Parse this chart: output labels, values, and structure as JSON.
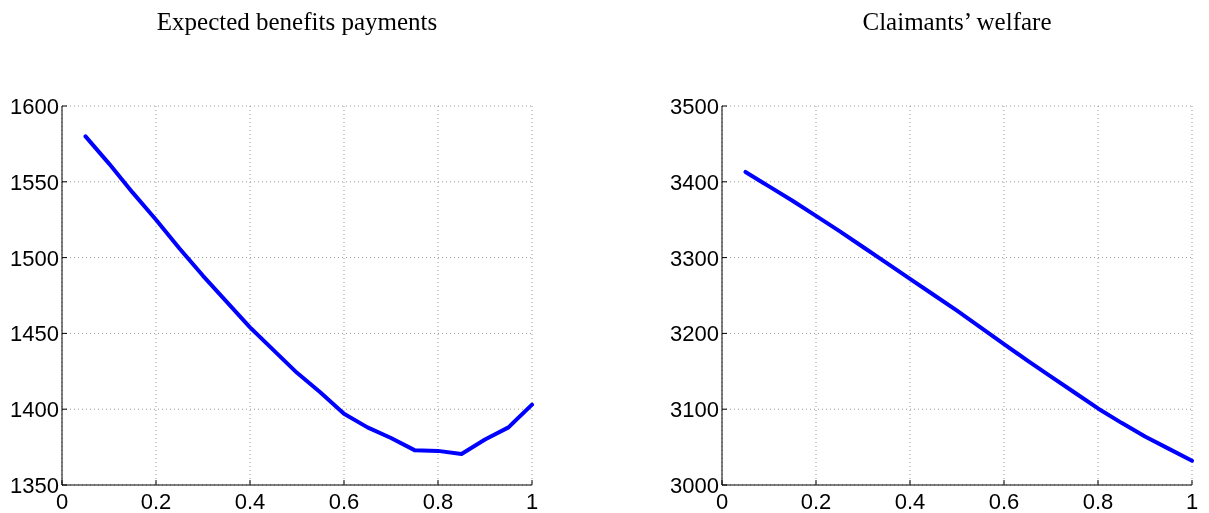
{
  "chart_data": [
    {
      "type": "line",
      "title": "Expected benefits payments",
      "x": [
        0.05,
        0.1,
        0.15,
        0.2,
        0.25,
        0.3,
        0.35,
        0.4,
        0.45,
        0.5,
        0.55,
        0.6,
        0.65,
        0.7,
        0.75,
        0.8,
        0.85,
        0.9,
        0.95,
        1
      ],
      "series": [
        {
          "color": "#0000ff",
          "values": [
            1580,
            1562,
            1543,
            1525,
            1506,
            1488,
            1471,
            1454,
            1439,
            1424,
            1411,
            1397,
            1388,
            1381,
            1373,
            1372.5,
            1370.5,
            1380,
            1388,
            1403
          ]
        }
      ],
      "xlim": [
        0,
        1
      ],
      "xticks": [
        0,
        0.2,
        0.4,
        0.6,
        0.8,
        1
      ],
      "ylim": [
        1350,
        1600
      ],
      "yticks": [
        1350,
        1400,
        1450,
        1500,
        1550,
        1600
      ],
      "grid": true,
      "line_style": "solid"
    },
    {
      "type": "line",
      "title": "Claimants’ welfare",
      "x": [
        0.05,
        0.1,
        0.15,
        0.2,
        0.25,
        0.3,
        0.35,
        0.4,
        0.45,
        0.5,
        0.55,
        0.6,
        0.65,
        0.7,
        0.75,
        0.8,
        0.85,
        0.9,
        0.95,
        1
      ],
      "series": [
        {
          "color": "#0000ff",
          "values": [
            3413,
            3394,
            3375,
            3355,
            3335,
            3314,
            3293,
            3272,
            3251,
            3230,
            3208,
            3186,
            3164,
            3143,
            3122,
            3101,
            3082,
            3064,
            3048,
            3032
          ]
        }
      ],
      "xlim": [
        0,
        1
      ],
      "xticks": [
        0,
        0.2,
        0.4,
        0.6,
        0.8,
        1
      ],
      "ylim": [
        3000,
        3500
      ],
      "yticks": [
        3000,
        3100,
        3200,
        3300,
        3400,
        3500
      ],
      "grid": true,
      "line_style": "solid"
    }
  ]
}
